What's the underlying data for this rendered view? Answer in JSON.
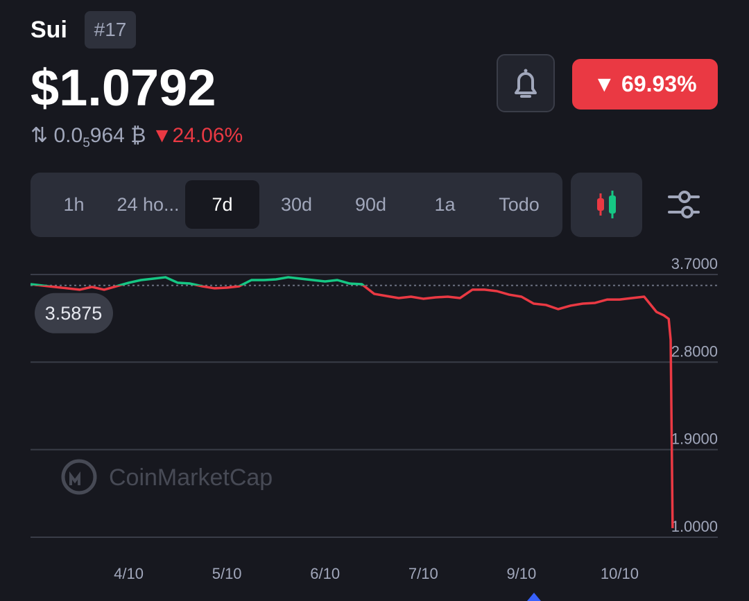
{
  "header": {
    "name": "Sui",
    "rank": "#17",
    "price": "$1.0792",
    "btc_price_lead": "0.0",
    "btc_price_sub": "5",
    "btc_price_tail": "964",
    "btc_symbol": "₿",
    "btc_change": "24.06%",
    "change_badge": "69.93%"
  },
  "tabs": {
    "items": [
      "1h",
      "24 ho...",
      "7d",
      "30d",
      "90d",
      "1a",
      "Todo"
    ],
    "active": 2
  },
  "watermark": "CoinMarketCap",
  "chart_data": {
    "type": "line",
    "x": [
      0,
      0.125,
      0.25,
      0.375,
      0.5,
      0.625,
      0.75,
      0.875,
      1,
      1.125,
      1.25,
      1.375,
      1.5,
      1.625,
      1.75,
      1.875,
      2,
      2.125,
      2.25,
      2.375,
      2.5,
      2.625,
      2.75,
      2.875,
      3,
      3.125,
      3.25,
      3.375,
      3.5,
      3.625,
      3.75,
      3.875,
      4,
      4.125,
      4.25,
      4.375,
      4.5,
      4.625,
      4.75,
      4.875,
      5,
      5.125,
      5.25,
      5.375,
      5.5,
      5.625,
      5.75,
      5.875,
      6,
      6.125,
      6.25,
      6.375,
      6.45,
      6.5,
      6.52,
      6.54
    ],
    "values": [
      3.6,
      3.586,
      3.572,
      3.558,
      3.544,
      3.572,
      3.544,
      3.579,
      3.615,
      3.643,
      3.657,
      3.672,
      3.615,
      3.607,
      3.579,
      3.558,
      3.565,
      3.579,
      3.643,
      3.643,
      3.65,
      3.672,
      3.657,
      3.643,
      3.629,
      3.643,
      3.607,
      3.6,
      3.501,
      3.479,
      3.458,
      3.472,
      3.451,
      3.465,
      3.472,
      3.458,
      3.544,
      3.544,
      3.529,
      3.493,
      3.472,
      3.401,
      3.387,
      3.344,
      3.38,
      3.401,
      3.408,
      3.443,
      3.443,
      3.458,
      3.472,
      3.316,
      3.28,
      3.244,
      3.03,
      1.093
    ],
    "reference": 3.5875,
    "colors": {
      "above": "#16c784",
      "below": "#ea3943"
    },
    "xlim": [
      0,
      7
    ],
    "xticks": [
      {
        "value": 1,
        "label": "4/10"
      },
      {
        "value": 2,
        "label": "5/10"
      },
      {
        "value": 3,
        "label": "6/10"
      },
      {
        "value": 4,
        "label": "7/10"
      },
      {
        "value": 5,
        "label": "9/10"
      },
      {
        "value": 6,
        "label": "10/10"
      }
    ],
    "ylim": [
      1.0,
      3.7
    ],
    "yticks": [
      {
        "value": 3.7,
        "label": "3.7000"
      },
      {
        "value": 2.8,
        "label": "2.8000"
      },
      {
        "value": 1.9,
        "label": "1.9000"
      },
      {
        "value": 1.0,
        "label": "1.0000"
      }
    ],
    "grid": true
  }
}
